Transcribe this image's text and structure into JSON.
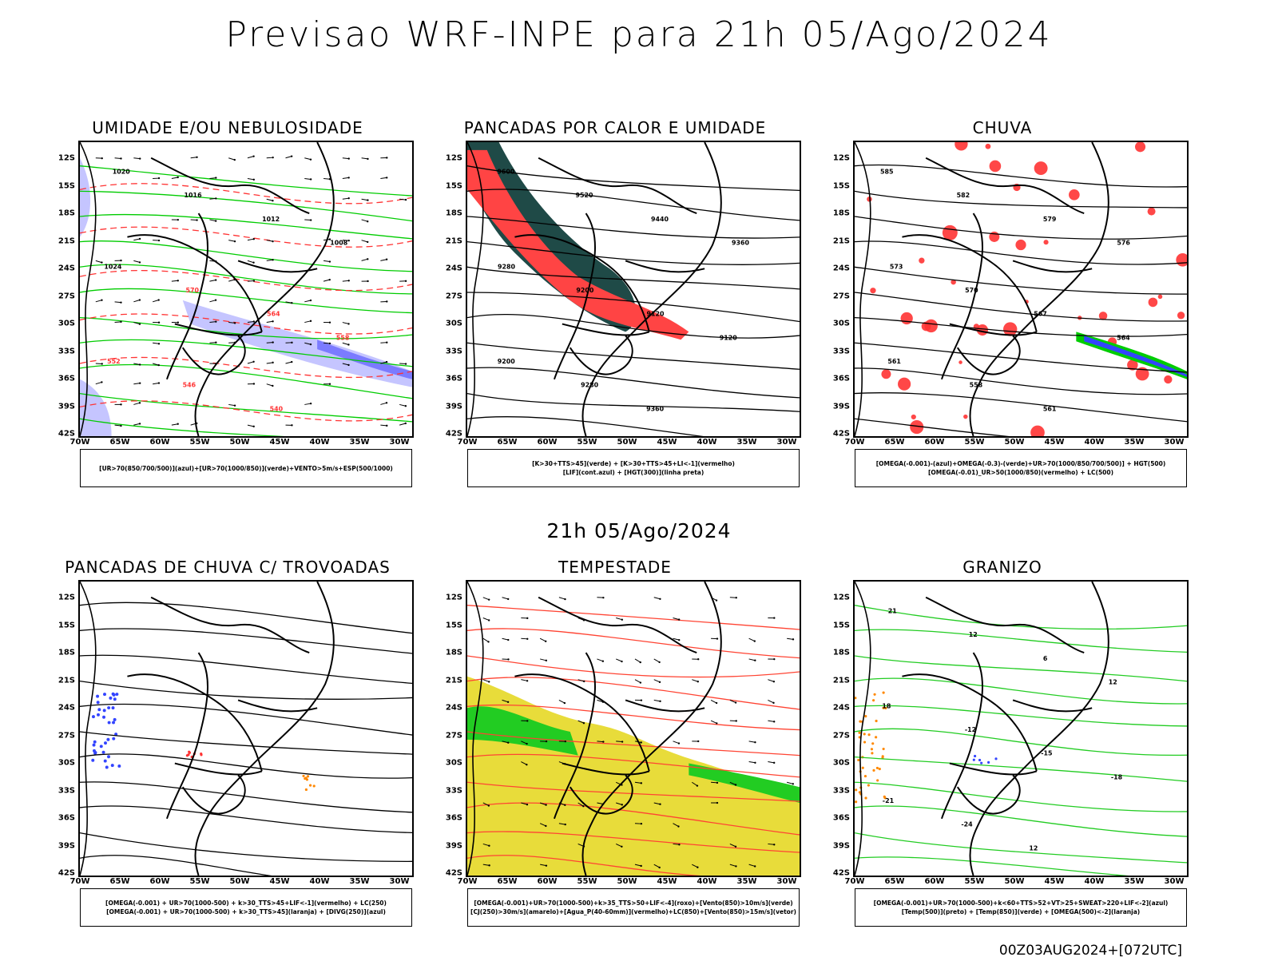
{
  "main_title": "Previsao WRF-INPE  para 21h 05/Ago/2024",
  "mid_title": "21h 05/Ago/2024",
  "footer": "00Z03AUG2024+[072UTC]",
  "axes": {
    "lat_labels": [
      "12S",
      "15S",
      "18S",
      "21S",
      "24S",
      "27S",
      "30S",
      "33S",
      "36S",
      "39S",
      "42S"
    ],
    "lon_labels": [
      "70W",
      "65W",
      "60W",
      "55W",
      "50W",
      "45W",
      "40W",
      "35W",
      "30W"
    ]
  },
  "panels": [
    {
      "title": "UMIDADE E/OU NEBULOSIDADE",
      "legend": [
        "[UR>70(850/700/500)](azul)+[UR>70(1000/850)](verde)+VENTO>5m/s+ESP(500/1000)"
      ],
      "colors": {
        "fill1": "#7b7bff",
        "fill2": "#c5c5ff",
        "line1": "#00cc00",
        "line2": "#ff3333"
      },
      "isolines": [
        "1020",
        "1016",
        "1012",
        "1008",
        "1024",
        "570",
        "564",
        "558",
        "552",
        "546",
        "540"
      ]
    },
    {
      "title": "PANCADAS POR CALOR E UMIDADE",
      "legend": [
        "[K>30+TTS>45](verde) + [K>30+TTS>45+LI<-1](vermelho)",
        "[LIF](cont.azul) + [HGT(300)](linha preta)"
      ],
      "colors": {
        "fill1": "#1f4a47",
        "fill2": "#ff4444",
        "line1": "#3344ff"
      },
      "isolines": [
        "9600",
        "9520",
        "9440",
        "9360",
        "9280",
        "9200",
        "9120",
        "9120",
        "9200",
        "9280",
        "9360"
      ]
    },
    {
      "title": "CHUVA",
      "legend": [
        "[OMEGA(-0.001)-(azul)+OMEGA(-0.3)-(verde)+UR>70(1000/850/700/500)] + HGT(500)",
        "[OMEGA(-0.01)_UR>50(1000/850)(vermelho) + LC(500)"
      ],
      "colors": {
        "fill1": "#ff3333",
        "fill2": "#3344ff",
        "line1": "#00cc00"
      },
      "isolines": [
        "585",
        "582",
        "579",
        "576",
        "573",
        "570",
        "567",
        "564",
        "561",
        "558",
        "561"
      ]
    },
    {
      "title": "PANCADAS DE CHUVA C/ TROVOADAS",
      "legend": [
        "[OMEGA(-0.001) + UR>70(1000-500) + k>30_TTS>45+LIF<-1](vermelho) + LC(250)",
        "[OMEGA(-0.001) + UR>70(1000-500) + k>30_TTS>45](laranja) + [DIVG(250)](azul)"
      ],
      "colors": {
        "fill1": "#3344ff",
        "fill2": "#ff3333",
        "line1": "#ff8800"
      },
      "isolines": []
    },
    {
      "title": "TEMPESTADE",
      "legend": [
        "[OMEGA(-0.001)+UR>70(1000-500)+k>35_TTS>50+LIF<-4](roxo)+[Vento(850)>10m/s](verde)",
        "[CJ(250)>30m/s](amarelo)+[Agua_P(40-60mm)](vermelho)+LC(850)+[Vento(850)>15m/s](vetor)"
      ],
      "colors": {
        "fill1": "#e8dc3a",
        "fill2": "#22cc22",
        "line1": "#ff4433"
      },
      "isolines": []
    },
    {
      "title": "GRANIZO",
      "legend": [
        "[OMEGA(-0.001)+UR>70(1000-500)+k<60+TTS>52+VT>25+SWEAT>220+LIF<-2](azul)",
        "[Temp(500)](preto) + [Temp(850)](verde) + [OMEGA(500)<-2](laranja)"
      ],
      "colors": {
        "fill1": "#ff8800",
        "fill2": "#3344ff",
        "line1": "#22cc22"
      },
      "isolines": [
        "21",
        "12",
        "6",
        "12",
        "18",
        "-12",
        "-15",
        "-18",
        "-21",
        "-24",
        "12"
      ]
    }
  ]
}
